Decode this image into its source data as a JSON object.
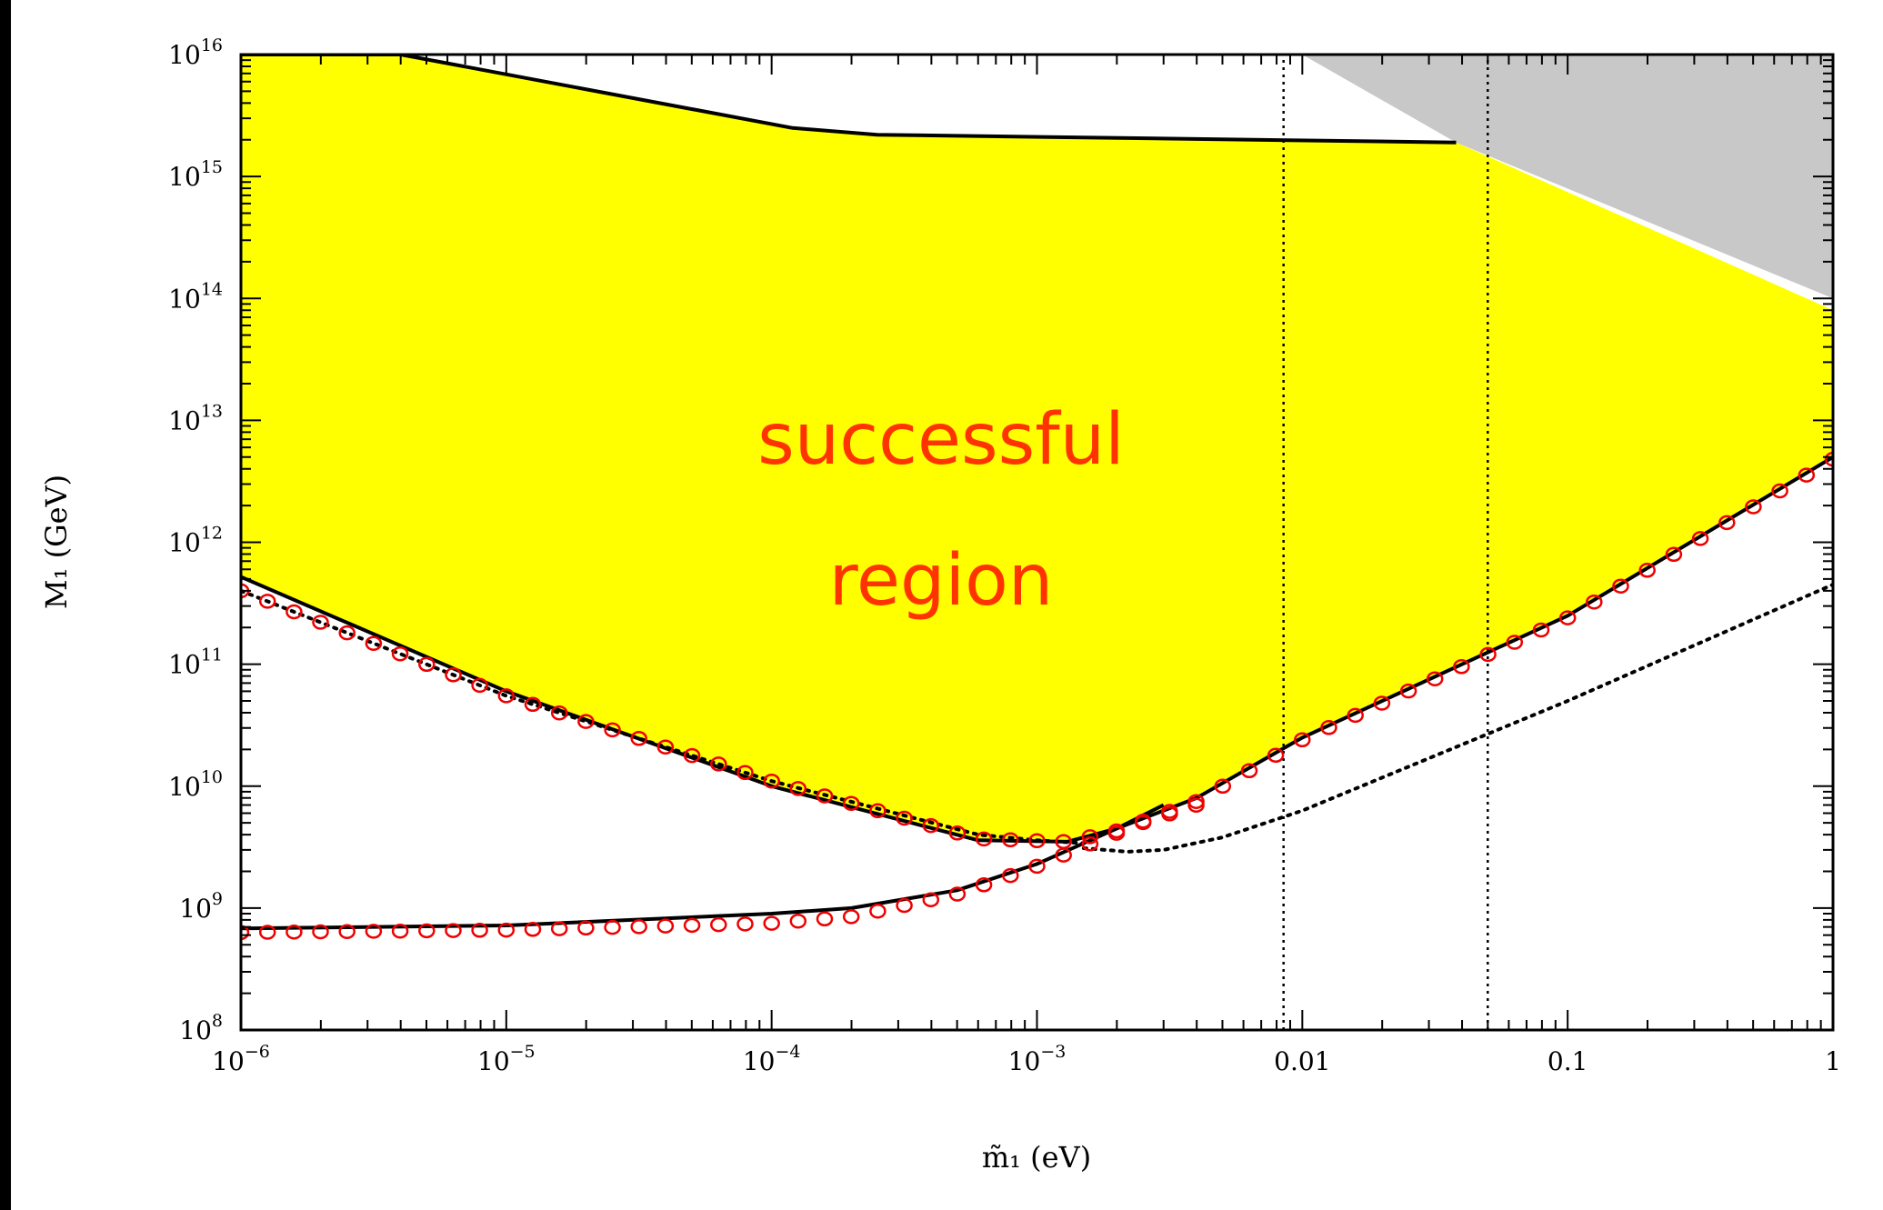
{
  "chart_data": {
    "type": "line",
    "title": "",
    "xlabel": "m̃₁ (eV)",
    "ylabel": "M₁ (GeV)",
    "xscale": "log",
    "yscale": "log",
    "xlim": [
      1e-06,
      1
    ],
    "ylim": [
      100000000.0,
      1e+16
    ],
    "x_ticks": [
      {
        "base": "10",
        "exp": "−6"
      },
      {
        "base": "10",
        "exp": "−5"
      },
      {
        "base": "10",
        "exp": "−4"
      },
      {
        "base": "10",
        "exp": "−3"
      },
      {
        "base": "0.01",
        "exp": ""
      },
      {
        "base": "0.1",
        "exp": ""
      },
      {
        "base": "1",
        "exp": ""
      }
    ],
    "y_ticks": [
      {
        "base": "10",
        "exp": "8"
      },
      {
        "base": "10",
        "exp": "9"
      },
      {
        "base": "10",
        "exp": "10"
      },
      {
        "base": "10",
        "exp": "11"
      },
      {
        "base": "10",
        "exp": "12"
      },
      {
        "base": "10",
        "exp": "13"
      },
      {
        "base": "10",
        "exp": "14"
      },
      {
        "base": "10",
        "exp": "15"
      },
      {
        "base": "10",
        "exp": "16"
      }
    ],
    "annotation": [
      "successful",
      "region"
    ],
    "colors": {
      "successful_region": "#ffff00",
      "excluded_region": "#c8c8c8",
      "curves": "#000000",
      "circles": "#ee0000",
      "annotation": "#ff3300"
    },
    "regions": [
      {
        "id": "successful",
        "fill": "yellow",
        "upper_boundary": [
          [
            1e-06,
            1e+16
          ],
          [
            4e-06,
            1e+16
          ],
          [
            0.00012,
            2500000000000000.0
          ],
          [
            0.00025,
            2200000000000000.0
          ],
          [
            0.038,
            1900000000000000.0
          ],
          [
            1,
            80000000000000.0
          ]
        ],
        "lower_boundary": [
          [
            1e-06,
            520000000000.0
          ],
          [
            1e-05,
            60000000000.0
          ],
          [
            0.0001,
            10000000000.0
          ],
          [
            0.0006,
            3600000000.0
          ],
          [
            0.0013,
            3500000000.0
          ],
          [
            0.002,
            4500000000.0
          ],
          [
            0.004,
            8000000000.0
          ],
          [
            0.01,
            25000000000.0
          ],
          [
            0.1,
            250000000000.0
          ],
          [
            1,
            5000000000000.0
          ]
        ]
      },
      {
        "id": "excluded",
        "fill": "gray",
        "polygon": [
          [
            0.01,
            1e+16
          ],
          [
            1,
            1e+16
          ],
          [
            1,
            100000000000000.0
          ],
          [
            0.038,
            1900000000000000.0
          ]
        ]
      }
    ],
    "series": [
      {
        "style": "solid",
        "x": [
          1e-06,
          4e-06,
          0.00012,
          0.00025,
          0.038
        ],
        "y": [
          1e+16,
          1e+16,
          2500000000000000.0,
          2200000000000000.0,
          1900000000000000.0
        ]
      },
      {
        "style": "solid",
        "x": [
          1e-06,
          1e-05,
          0.0001,
          0.0006,
          0.0013,
          0.002,
          0.004,
          0.01,
          0.1,
          1
        ],
        "y": [
          520000000000.0,
          60000000000.0,
          10000000000.0,
          3600000000.0,
          3500000000.0,
          4500000000.0,
          8000000000.0,
          25000000000.0,
          250000000000.0,
          5000000000000.0
        ]
      },
      {
        "style": "solid",
        "x": [
          1e-06,
          1e-05,
          0.0001,
          0.0002,
          0.0005,
          0.001,
          0.002,
          0.003
        ],
        "y": [
          680000000.0,
          720000000.0,
          900000000.0,
          1000000000.0,
          1400000000.0,
          2300000000.0,
          4500000000.0,
          7000000000.0
        ]
      },
      {
        "style": "dotted",
        "x": [
          1e-06,
          1e-05,
          0.0001,
          0.0006,
          0.001,
          0.0015
        ],
        "y": [
          400000000000.0,
          55000000000.0,
          11000000000.0,
          4000000000.0,
          3600000000.0,
          3400000000.0
        ]
      },
      {
        "style": "dotted",
        "x": [
          0.0015,
          0.0022,
          0.003,
          0.005,
          0.01,
          0.1,
          1
        ],
        "y": [
          3100000000.0,
          2900000000.0,
          3000000000.0,
          3800000000.0,
          6300000000.0,
          50000000000.0,
          450000000000.0
        ]
      },
      {
        "style": "circles",
        "x": [
          1e-06,
          1e-05,
          0.0001,
          0.0006,
          0.0013,
          0.002,
          0.004,
          0.01,
          0.1,
          1
        ],
        "y": [
          400000000000.0,
          55000000000.0,
          11000000000.0,
          3700000000.0,
          3500000000.0,
          4300000000.0,
          7500000000.0,
          24000000000.0,
          240000000000.0,
          4800000000000.0
        ]
      },
      {
        "style": "circles",
        "x": [
          1e-06,
          1e-05,
          0.0001,
          0.0002,
          0.0005,
          0.001,
          0.0015,
          0.0025,
          0.004
        ],
        "y": [
          630000000.0,
          660000000.0,
          750000000.0,
          850000000.0,
          1300000000.0,
          2200000000.0,
          3200000000.0,
          5000000000.0,
          7000000000.0
        ]
      },
      {
        "style": "vertical-dotted",
        "x": [
          0.0085,
          0.0085
        ],
        "y": [
          100000000.0,
          1e+16
        ]
      },
      {
        "style": "vertical-dotted",
        "x": [
          0.05,
          0.05
        ],
        "y": [
          100000000.0,
          1e+16
        ]
      }
    ]
  }
}
